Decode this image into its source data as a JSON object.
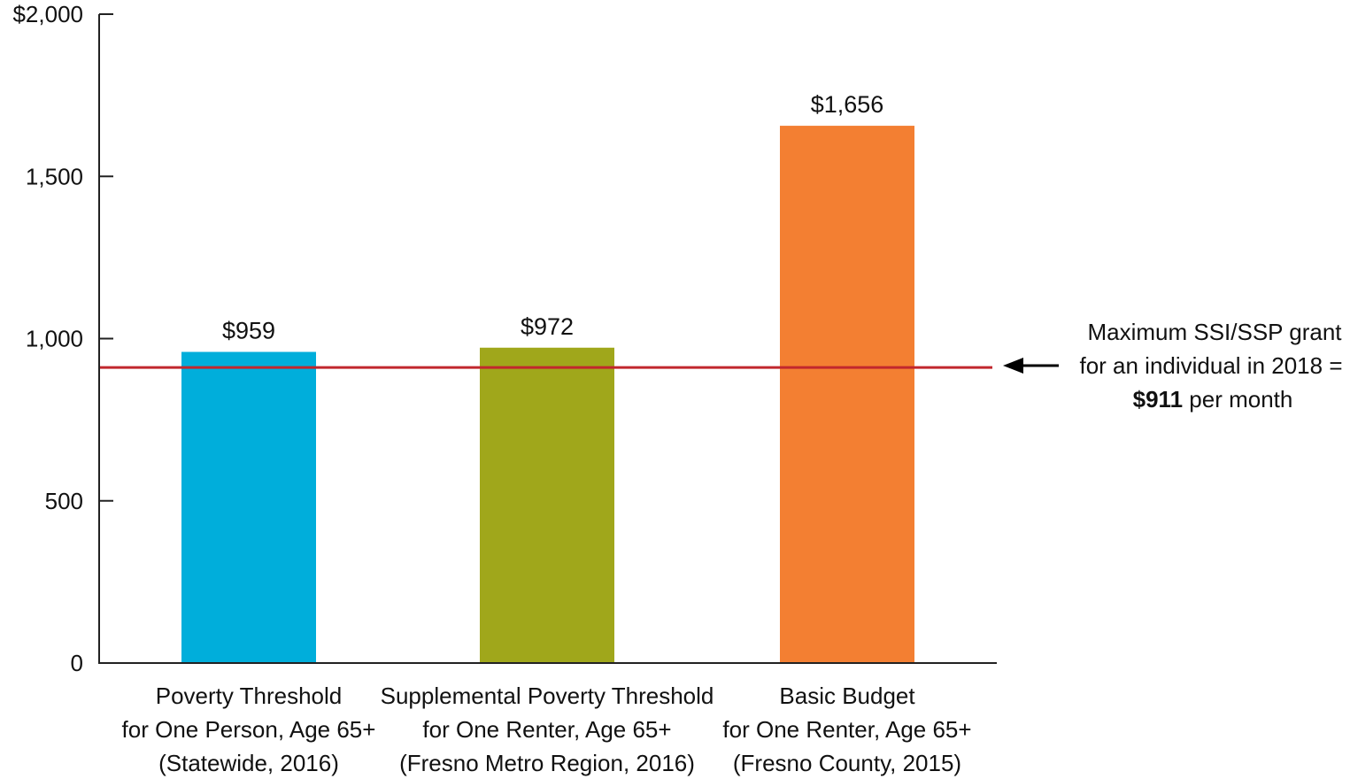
{
  "chart_data": {
    "type": "bar",
    "categories": [
      [
        "Poverty Threshold",
        "for One Person, Age 65+",
        "(Statewide, 2016)"
      ],
      [
        "Supplemental Poverty Threshold",
        "for One Renter, Age 65+",
        "(Fresno Metro Region, 2016)"
      ],
      [
        "Basic Budget",
        "for One Renter, Age 65+",
        "(Fresno County, 2015)"
      ]
    ],
    "values": [
      959,
      972,
      1656
    ],
    "data_labels": [
      "$959",
      "$972",
      "$1,656"
    ],
    "colors": [
      "#00AEDB",
      "#A0A71B",
      "#F37F32"
    ],
    "ylim": [
      0,
      2000
    ],
    "yticks": [
      0,
      500,
      1000,
      1500,
      2000
    ],
    "ytick_labels": [
      "0",
      "500",
      "1,000",
      "1,500",
      "$2,000"
    ],
    "grid": false,
    "reference_line": {
      "value": 911,
      "color": "#C1272D",
      "annotation": {
        "line1": "Maximum SSI/SSP grant",
        "line2": "for an individual in 2018 =",
        "amount": "$911",
        "suffix": " per month"
      }
    }
  }
}
